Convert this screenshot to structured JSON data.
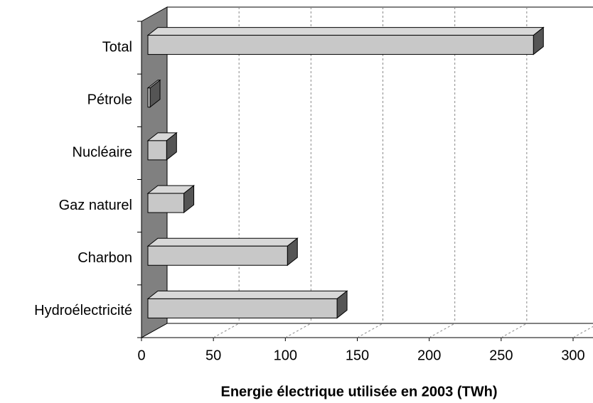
{
  "chart_data": {
    "type": "bar",
    "x_label": "Energie électrique utilisée en 2003 (TWh)",
    "categories": [
      "Hydroélectricité",
      "Charbon",
      "Gaz naturel",
      "Nucléaire",
      "Pétrole",
      "Total"
    ],
    "values": [
      131.5,
      97,
      25,
      13,
      1.5,
      268
    ],
    "color": "#c8c8c8",
    "xlim": [
      0,
      300
    ],
    "xticks": [
      0,
      50,
      100,
      150,
      200,
      250,
      300
    ],
    "grid": true
  }
}
